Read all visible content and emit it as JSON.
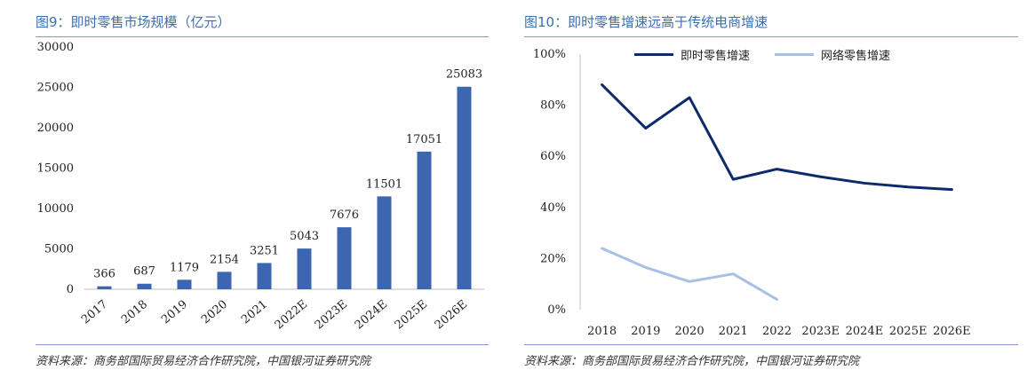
{
  "left": {
    "title": "图9：即时零售市场规模（亿元）",
    "source": "资料来源：商务部国际贸易经济合作研究院，中国银河证券研究院"
  },
  "right": {
    "title": "图10：即时零售增速远高于传统电商增速",
    "source": "资料来源：商务部国际贸易经济合作研究院，中国银河证券研究院"
  },
  "chart_data": [
    {
      "type": "bar",
      "title": "图9：即时零售市场规模（亿元）",
      "categories": [
        "2017",
        "2018",
        "2019",
        "2020",
        "2021",
        "2022E",
        "2023E",
        "2024E",
        "2025E",
        "2026E"
      ],
      "values": [
        366,
        687,
        1179,
        2154,
        3251,
        5043,
        7676,
        11501,
        17051,
        25083
      ],
      "ylim": [
        0,
        30000
      ],
      "yticks": [
        "0",
        "5000",
        "10000",
        "15000",
        "20000",
        "25000",
        "30000"
      ],
      "grid": false,
      "color": "#3d66b0"
    },
    {
      "type": "line",
      "title": "图10：即时零售增速远高于传统电商增速",
      "categories": [
        "2018",
        "2019",
        "2020",
        "2021",
        "2022",
        "2023E",
        "2024E",
        "2025E",
        "2026E"
      ],
      "series": [
        {
          "name": "即时零售增速",
          "color": "#0d2a6b",
          "values": [
            88,
            71,
            83,
            51,
            55,
            52,
            49.5,
            48,
            47
          ]
        },
        {
          "name": "网络零售增速",
          "color": "#a9bfe4",
          "values": [
            24,
            16.5,
            11,
            14,
            4,
            null,
            null,
            null,
            null
          ]
        }
      ],
      "ylim": [
        0,
        100
      ],
      "yticks": [
        "0%",
        "20%",
        "40%",
        "60%",
        "80%",
        "100%"
      ],
      "legend": "top-center",
      "grid": false
    }
  ]
}
